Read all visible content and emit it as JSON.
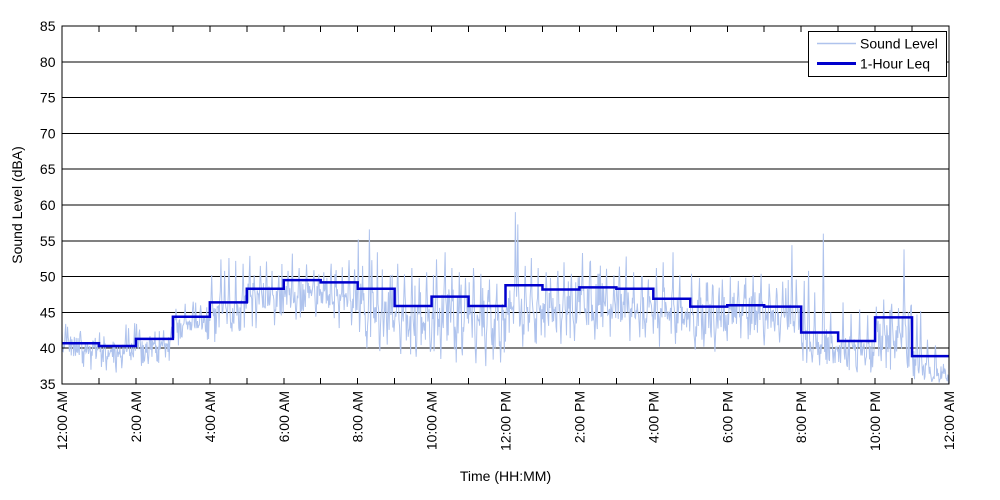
{
  "chart_data": {
    "type": "line",
    "title": "",
    "xlabel": "Time (HH:MM)",
    "ylabel": "Sound Level (dBA)",
    "ylim": [
      35,
      85
    ],
    "ytick_step": 5,
    "yticks": [
      "35",
      "40",
      "45",
      "50",
      "55",
      "60",
      "65",
      "70",
      "75",
      "80",
      "85"
    ],
    "xlim_minutes": [
      0,
      1440
    ],
    "xtick_minor_every_minutes": 60,
    "xtick_labels": [
      {
        "minute": 0,
        "label": "12:00 AM"
      },
      {
        "minute": 120,
        "label": "2:00 AM"
      },
      {
        "minute": 240,
        "label": "4:00 AM"
      },
      {
        "minute": 360,
        "label": "6:00 AM"
      },
      {
        "minute": 480,
        "label": "8:00 AM"
      },
      {
        "minute": 600,
        "label": "10:00 AM"
      },
      {
        "minute": 720,
        "label": "12:00 PM"
      },
      {
        "minute": 840,
        "label": "2:00 PM"
      },
      {
        "minute": 960,
        "label": "4:00 PM"
      },
      {
        "minute": 1080,
        "label": "6:00 PM"
      },
      {
        "minute": 1200,
        "label": "8:00 PM"
      },
      {
        "minute": 1320,
        "label": "10:00 PM"
      },
      {
        "minute": 1440,
        "label": "12:00 AM"
      }
    ],
    "grid": {
      "horizontal": true,
      "vertical": false,
      "color": "#000000",
      "style": "solid"
    },
    "legend": {
      "position": "top-right",
      "entries": [
        {
          "label": "Sound Level",
          "color": "#afc3ed",
          "line_width": 1.5
        },
        {
          "label": "1-Hour Leq",
          "color": "#0000cd",
          "line_width": 3
        }
      ]
    },
    "series": [
      {
        "name": "Sound Level",
        "color": "#afc3ed",
        "line_width": 1,
        "kind": "minute_noise",
        "seed": 7,
        "hourly_profile": [
          {
            "m0": 40.3,
            "m1": 40.0,
            "s": 0.9,
            "dn": 1.15
          },
          {
            "m0": 39.6,
            "m1": 39.6,
            "s": 1.0,
            "dn": 1.15
          },
          {
            "m0": 39.9,
            "m1": 40.8,
            "s": 1.0,
            "dn": 1.15
          },
          {
            "m0": 43.0,
            "m1": 44.0,
            "s": 1.1,
            "dn": 1.0
          },
          {
            "m0": 44.5,
            "m1": 45.4,
            "s": 1.5,
            "dn": 1.0
          },
          {
            "m0": 46.5,
            "m1": 46.8,
            "s": 1.4,
            "dn": 1.0
          },
          {
            "m0": 47.5,
            "m1": 47.6,
            "s": 1.3,
            "dn": 1.0
          },
          {
            "m0": 47.3,
            "m1": 46.8,
            "s": 1.4,
            "dn": 1.0
          },
          {
            "m0": 45.0,
            "m1": 44.4,
            "s": 2.1,
            "dn": 1.1
          },
          {
            "m0": 43.8,
            "m1": 44.0,
            "s": 1.9,
            "dn": 1.1
          },
          {
            "m0": 44.6,
            "m1": 44.6,
            "s": 2.1,
            "dn": 1.1
          },
          {
            "m0": 43.7,
            "m1": 43.7,
            "s": 2.0,
            "dn": 1.15
          },
          {
            "m0": 45.2,
            "m1": 45.4,
            "s": 1.9,
            "dn": 1.1
          },
          {
            "m0": 45.4,
            "m1": 45.4,
            "s": 1.7,
            "dn": 1.1
          },
          {
            "m0": 46.0,
            "m1": 45.8,
            "s": 1.8,
            "dn": 1.1
          },
          {
            "m0": 45.9,
            "m1": 45.7,
            "s": 1.7,
            "dn": 1.1
          },
          {
            "m0": 45.0,
            "m1": 44.7,
            "s": 1.7,
            "dn": 1.1
          },
          {
            "m0": 44.4,
            "m1": 44.4,
            "s": 1.7,
            "dn": 1.1
          },
          {
            "m0": 45.0,
            "m1": 45.0,
            "s": 1.5,
            "dn": 1.1
          },
          {
            "m0": 44.4,
            "m1": 43.8,
            "s": 1.4,
            "dn": 1.1
          },
          {
            "m0": 40.6,
            "m1": 40.2,
            "s": 1.3,
            "dn": 1.1
          },
          {
            "m0": 39.7,
            "m1": 39.6,
            "s": 1.2,
            "dn": 1.1
          },
          {
            "m0": 41.3,
            "m1": 41.8,
            "s": 1.8,
            "dn": 1.1
          },
          {
            "m0": 37.8,
            "m1": 36.2,
            "s": 1.0,
            "dn": 1.1
          }
        ],
        "spikes": [
          [
            6,
            43.4
          ],
          [
            9,
            43.0
          ],
          [
            30,
            42.4
          ],
          [
            61,
            42.2
          ],
          [
            104,
            43.3
          ],
          [
            108,
            42.8
          ],
          [
            118,
            43.5
          ],
          [
            121,
            43.4
          ],
          [
            126,
            42.6
          ],
          [
            165,
            42.5
          ],
          [
            178,
            43.0
          ],
          [
            185,
            45.5
          ],
          [
            200,
            46.2
          ],
          [
            213,
            46.5
          ],
          [
            225,
            46.0
          ],
          [
            243,
            50.2
          ],
          [
            258,
            52.4
          ],
          [
            264,
            50.8
          ],
          [
            271,
            52.6
          ],
          [
            282,
            52.2
          ],
          [
            294,
            51.8
          ],
          [
            305,
            52.9
          ],
          [
            312,
            50.2
          ],
          [
            322,
            51.5
          ],
          [
            332,
            52.1
          ],
          [
            341,
            50.8
          ],
          [
            352,
            50.2
          ],
          [
            367,
            50.8
          ],
          [
            374,
            53.2
          ],
          [
            385,
            51.2
          ],
          [
            397,
            51.7
          ],
          [
            409,
            50.9
          ],
          [
            417,
            50.3
          ],
          [
            425,
            50.6
          ],
          [
            437,
            51.8
          ],
          [
            445,
            50.9
          ],
          [
            455,
            51.3
          ],
          [
            466,
            52.3
          ],
          [
            475,
            51.0
          ],
          [
            481,
            55.2
          ],
          [
            488,
            51.5
          ],
          [
            499,
            56.6
          ],
          [
            503,
            52.3
          ],
          [
            512,
            53.4
          ],
          [
            520,
            51.0
          ],
          [
            533,
            50.2
          ],
          [
            545,
            51.8
          ],
          [
            556,
            50.3
          ],
          [
            568,
            51.2
          ],
          [
            580,
            49.8
          ],
          [
            592,
            50.6
          ],
          [
            608,
            52.4
          ],
          [
            622,
            53.4
          ],
          [
            633,
            51.2
          ],
          [
            645,
            50.6
          ],
          [
            655,
            49.8
          ],
          [
            668,
            51.2
          ],
          [
            680,
            50.4
          ],
          [
            694,
            49.6
          ],
          [
            706,
            49.0
          ],
          [
            736,
            59.0
          ],
          [
            740,
            57.3
          ],
          [
            752,
            51.5
          ],
          [
            762,
            52.6
          ],
          [
            773,
            51.2
          ],
          [
            786,
            50.6
          ],
          [
            793,
            49.8
          ],
          [
            805,
            50.8
          ],
          [
            815,
            52.0
          ],
          [
            827,
            50.4
          ],
          [
            838,
            49.9
          ],
          [
            845,
            53.3
          ],
          [
            858,
            52.2
          ],
          [
            872,
            50.4
          ],
          [
            884,
            51.1
          ],
          [
            896,
            50.2
          ],
          [
            905,
            51.4
          ],
          [
            916,
            52.8
          ],
          [
            928,
            50.6
          ],
          [
            941,
            50.0
          ],
          [
            952,
            49.6
          ],
          [
            965,
            51.2
          ],
          [
            976,
            52.0
          ],
          [
            992,
            53.4
          ],
          [
            1003,
            50.2
          ],
          [
            1022,
            50.4
          ],
          [
            1035,
            49.8
          ],
          [
            1048,
            49.2
          ],
          [
            1056,
            48.8
          ],
          [
            1072,
            49.6
          ],
          [
            1085,
            50.0
          ],
          [
            1098,
            49.4
          ],
          [
            1108,
            48.9
          ],
          [
            1122,
            50.2
          ],
          [
            1135,
            50.4
          ],
          [
            1148,
            49.0
          ],
          [
            1160,
            48.4
          ],
          [
            1170,
            49.3
          ],
          [
            1185,
            54.4
          ],
          [
            1192,
            49.6
          ],
          [
            1205,
            49.4
          ],
          [
            1212,
            50.8
          ],
          [
            1222,
            47.8
          ],
          [
            1236,
            56.0
          ],
          [
            1248,
            45.0
          ],
          [
            1268,
            46.4
          ],
          [
            1281,
            44.8
          ],
          [
            1295,
            45.4
          ],
          [
            1308,
            44.6
          ],
          [
            1322,
            45.8
          ],
          [
            1334,
            46.8
          ],
          [
            1347,
            46.2
          ],
          [
            1358,
            45.6
          ],
          [
            1367,
            53.8
          ],
          [
            1378,
            45.9
          ],
          [
            1388,
            44.7
          ],
          [
            1394,
            45.2
          ],
          [
            1405,
            41.2
          ],
          [
            1418,
            40.4
          ],
          [
            1431,
            37.8
          ]
        ],
        "dips": [
          [
            35,
            37.4
          ],
          [
            47,
            37.0
          ],
          [
            72,
            36.9
          ],
          [
            88,
            36.6
          ],
          [
            97,
            37.2
          ],
          [
            140,
            37.8
          ],
          [
            155,
            38.2
          ],
          [
            250,
            42.0
          ],
          [
            288,
            42.4
          ],
          [
            315,
            42.8
          ],
          [
            345,
            43.2
          ],
          [
            380,
            44.0
          ],
          [
            412,
            44.4
          ],
          [
            450,
            42.8
          ],
          [
            470,
            43.2
          ],
          [
            495,
            40.0
          ],
          [
            516,
            39.6
          ],
          [
            528,
            40.5
          ],
          [
            550,
            39.2
          ],
          [
            575,
            38.8
          ],
          [
            598,
            39.5
          ],
          [
            615,
            38.5
          ],
          [
            640,
            38.0
          ],
          [
            650,
            39.0
          ],
          [
            672,
            37.9
          ],
          [
            688,
            37.5
          ],
          [
            700,
            38.4
          ],
          [
            712,
            38.0
          ],
          [
            748,
            40.2
          ],
          [
            768,
            40.8
          ],
          [
            810,
            40.6
          ],
          [
            832,
            41.0
          ],
          [
            865,
            41.2
          ],
          [
            890,
            41.6
          ],
          [
            922,
            41.0
          ],
          [
            947,
            41.5
          ],
          [
            970,
            40.2
          ],
          [
            996,
            40.6
          ],
          [
            1028,
            39.8
          ],
          [
            1042,
            40.2
          ],
          [
            1060,
            39.5
          ],
          [
            1080,
            41.0
          ],
          [
            1102,
            41.4
          ],
          [
            1140,
            40.4
          ],
          [
            1165,
            40.8
          ],
          [
            1218,
            38.0
          ],
          [
            1230,
            37.6
          ],
          [
            1252,
            37.9
          ],
          [
            1275,
            37.4
          ],
          [
            1290,
            37.0
          ],
          [
            1304,
            37.6
          ],
          [
            1330,
            38.2
          ],
          [
            1352,
            38.6
          ],
          [
            1372,
            38.0
          ],
          [
            1400,
            35.6
          ],
          [
            1412,
            35.3
          ],
          [
            1424,
            35.2
          ],
          [
            1437,
            35.4
          ]
        ]
      },
      {
        "name": "1-Hour Leq",
        "color": "#0000cd",
        "line_width": 2.5,
        "kind": "hourly_step",
        "hourly_leq": [
          40.7,
          40.3,
          41.3,
          44.4,
          46.4,
          48.3,
          49.5,
          49.2,
          48.3,
          45.9,
          47.2,
          45.9,
          48.8,
          48.2,
          48.5,
          48.3,
          46.9,
          45.8,
          46.0,
          45.8,
          42.2,
          41.0,
          44.3,
          38.9
        ]
      }
    ]
  }
}
